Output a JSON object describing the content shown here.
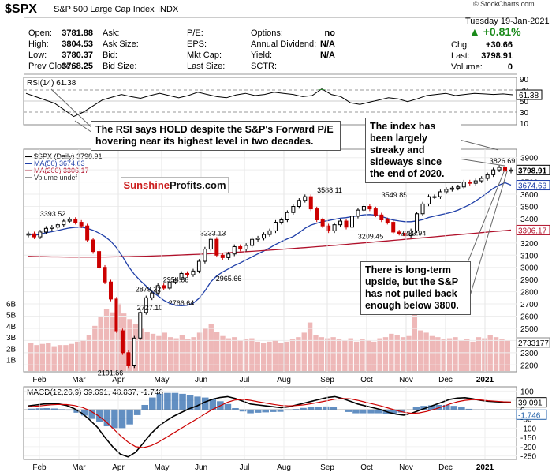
{
  "header": {
    "symbol": "$SPX",
    "name": "S&P 500 Large Cap Index",
    "exchange": "INDX",
    "date": "Tuesday 19-Jan-2021",
    "watermark": "© StockCharts.com",
    "quote_left": [
      {
        "label": "Open:",
        "value": "3781.88"
      },
      {
        "label": "High:",
        "value": "3804.53"
      },
      {
        "label": "Low:",
        "value": "3780.37"
      },
      {
        "label": "Prev Close:",
        "value": "3768.25"
      }
    ],
    "quote_mid": [
      {
        "label": "Ask:",
        "value": ""
      },
      {
        "label": "Ask Size:",
        "value": ""
      },
      {
        "label": "Bid:",
        "value": ""
      },
      {
        "label": "Bid Size:",
        "value": ""
      }
    ],
    "quote_mid2": [
      {
        "label": "P/E:",
        "value": ""
      },
      {
        "label": "EPS:",
        "value": ""
      },
      {
        "label": "Mkt Cap:",
        "value": ""
      },
      {
        "label": "Last Size:",
        "value": ""
      }
    ],
    "quote_right": [
      {
        "label": "Options:",
        "value": "no"
      },
      {
        "label": "Annual Dividend:",
        "value": "N/A"
      },
      {
        "label": "Yield:",
        "value": "N/A"
      },
      {
        "label": "SCTR:",
        "value": ""
      }
    ],
    "change_pct": "▲ +0.81%",
    "chg_label": "Chg:",
    "chg_value": "+30.66",
    "last_label": "Last:",
    "last_value": "3798.91",
    "vol_label": "Volume:",
    "vol_value": "0"
  },
  "callouts": {
    "rsi": "The RSI says HOLD despite the S&P's Forward P/E hovering near its highest level in two decades.",
    "streaky": "The index has been largely streaky and sideways since the end of 2020.",
    "upside": "There is long-term upside, but the S&P has not pulled back enough below 3800."
  },
  "logo": {
    "part1": "Sunshine",
    "part2": "Profits.com"
  },
  "colors": {
    "up": "#000000",
    "down": "#cc0000",
    "ma50": "#1f3fa8",
    "ma200": "#b0102a",
    "volume": "#e8a0a0",
    "rsi_fill": "#2e7d32",
    "macd_line": "#000000",
    "signal": "#cc0000",
    "hist": "#1f5fa8"
  },
  "chart_data": [
    {
      "type": "line",
      "panel": "RSI",
      "title": "RSI(14) 61.38",
      "ylim": [
        10,
        90
      ],
      "y_ticks": [
        10,
        30,
        50,
        70,
        90
      ],
      "reference_lines": [
        30,
        70
      ],
      "last_value_label": "61.38",
      "series": [
        {
          "name": "RSI(14)",
          "values": [
            64,
            58,
            52,
            46,
            34,
            22,
            30,
            41,
            52,
            57,
            62,
            58,
            55,
            60,
            64,
            60,
            56,
            60,
            66,
            62,
            58,
            56,
            61,
            64,
            60,
            62,
            66,
            64,
            62,
            58,
            60,
            72,
            62,
            58,
            47,
            44,
            48,
            52,
            56,
            54,
            49,
            54,
            60,
            62,
            64,
            60,
            62,
            64,
            63,
            62,
            63,
            61.38
          ]
        }
      ]
    },
    {
      "type": "candlestick",
      "panel": "Price",
      "title": "$SPX (Daily) 3798.91",
      "legend": [
        {
          "label": "$SPX (Daily) 3798.91",
          "color": "#000000"
        },
        {
          "label": "MA(50) 3674.63",
          "color": "#1f3fa8"
        },
        {
          "label": "MA(200) 3306.17",
          "color": "#b0102a"
        },
        {
          "label": "Volume undef",
          "color": "#999999"
        }
      ],
      "ylim": [
        2150,
        3950
      ],
      "y_ticks": [
        2200,
        2300,
        2400,
        2500,
        2600,
        2700,
        2800,
        2900,
        3000,
        3100,
        3200,
        3300,
        3400,
        3500,
        3600,
        3700,
        3800,
        3900
      ],
      "x_ticks": [
        "Feb",
        "Mar",
        "Apr",
        "May",
        "Jun",
        "Jul",
        "Aug",
        "Sep",
        "Oct",
        "Nov",
        "Dec",
        "2021"
      ],
      "close": [
        3275,
        3250,
        3290,
        3320,
        3330,
        3350,
        3380,
        3393,
        3370,
        3340,
        3225,
        3130,
        3000,
        2880,
        2740,
        2480,
        2300,
        2192,
        2420,
        2630,
        2750,
        2790,
        2850,
        2830,
        2880,
        2900,
        2950,
        2940,
        2970,
        3050,
        3150,
        3230,
        3100,
        3080,
        3110,
        3170,
        3150,
        3180,
        3230,
        3240,
        3270,
        3300,
        3370,
        3390,
        3450,
        3500,
        3550,
        3580,
        3480,
        3390,
        3340,
        3300,
        3350,
        3380,
        3330,
        3420,
        3470,
        3500,
        3480,
        3430,
        3390,
        3370,
        3290,
        3280,
        3260,
        3300,
        3440,
        3520,
        3580,
        3580,
        3620,
        3640,
        3650,
        3660,
        3700,
        3690,
        3710,
        3730,
        3760,
        3800,
        3820,
        3790,
        3798.91
      ],
      "ma50_last": 3674.63,
      "ma200_last": 3306.17,
      "annotations": [
        {
          "text": "3393.52",
          "value": 3393.52
        },
        {
          "text": "2191.86",
          "value": 2191.86
        },
        {
          "text": "2727.10",
          "value": 2727.1
        },
        {
          "text": "2879.22",
          "value": 2879.22
        },
        {
          "text": "2954.86",
          "value": 2954.86
        },
        {
          "text": "2766.64",
          "value": 2766.64
        },
        {
          "text": "3233.13",
          "value": 3233.13
        },
        {
          "text": "2965.66",
          "value": 2965.66
        },
        {
          "text": "3588.11",
          "value": 3588.11
        },
        {
          "text": "3209.45",
          "value": 3209.45
        },
        {
          "text": "3549.85",
          "value": 3549.85
        },
        {
          "text": "3233.94",
          "value": 3233.94
        },
        {
          "text": "3826.69",
          "value": 3826.69
        }
      ],
      "last_labels": [
        "3798.91",
        "3674.63",
        "3306.17",
        "2733177"
      ],
      "volume_ticks": [
        "1B",
        "2B",
        "3B",
        "4B",
        "5B",
        "6B"
      ],
      "volume": [
        2.5,
        2.3,
        2.4,
        2.5,
        2.2,
        2.3,
        2.3,
        2.4,
        2.6,
        2.7,
        3.2,
        4.0,
        4.8,
        5.5,
        5.2,
        6.0,
        5.1,
        4.6,
        4.2,
        3.8,
        3.5,
        3.3,
        3.1,
        3.4,
        3.0,
        2.9,
        3.2,
        2.8,
        3.0,
        3.4,
        3.8,
        4.2,
        3.5,
        3.1,
        2.9,
        3.0,
        2.7,
        2.8,
        2.9,
        2.6,
        2.5,
        2.6,
        2.7,
        2.5,
        2.6,
        2.8,
        3.0,
        3.4,
        4.3,
        3.2,
        3.0,
        2.9,
        3.0,
        2.8,
        2.7,
        2.9,
        2.6,
        2.8,
        2.7,
        2.6,
        2.9,
        3.0,
        3.3,
        3.2,
        3.0,
        3.1,
        5.2,
        3.6,
        3.4,
        3.1,
        3.0,
        2.8,
        2.9,
        3.0,
        2.7,
        2.8,
        2.6,
        3.0,
        2.9,
        3.2,
        3.0,
        2.8,
        2.7
      ]
    },
    {
      "type": "line",
      "panel": "MACD",
      "title": "MACD(12,26,9) 39.091, 40.837, -1.746",
      "ylim": [
        -260,
        110
      ],
      "y_ticks": [
        -250,
        -200,
        -150,
        -100,
        -50,
        0,
        50,
        100
      ],
      "x_ticks": [
        "Feb",
        "Mar",
        "Apr",
        "May",
        "Jun",
        "Jul",
        "Aug",
        "Sep",
        "Oct",
        "Nov",
        "Dec",
        "2021"
      ],
      "last_labels": [
        "39.091",
        "-1.746"
      ],
      "series": [
        {
          "name": "MACD",
          "values": [
            20,
            25,
            30,
            32,
            30,
            22,
            5,
            -20,
            -55,
            -95,
            -150,
            -200,
            -240,
            -255,
            -230,
            -180,
            -130,
            -90,
            -60,
            -35,
            -15,
            5,
            20,
            40,
            55,
            65,
            70,
            60,
            45,
            30,
            25,
            20,
            15,
            10,
            15,
            25,
            35,
            45,
            55,
            65,
            70,
            60,
            45,
            30,
            20,
            10,
            0,
            -15,
            -25,
            -30,
            -20,
            -5,
            10,
            25,
            40,
            55,
            62,
            64,
            58,
            50,
            45,
            42,
            40,
            39.091
          ]
        },
        {
          "name": "Signal",
          "values": [
            15,
            18,
            22,
            26,
            28,
            27,
            22,
            12,
            -5,
            -30,
            -60,
            -100,
            -140,
            -175,
            -200,
            -205,
            -195,
            -175,
            -150,
            -125,
            -100,
            -75,
            -50,
            -25,
            0,
            20,
            40,
            52,
            55,
            50,
            42,
            35,
            28,
            22,
            20,
            22,
            26,
            32,
            40,
            48,
            56,
            60,
            58,
            50,
            40,
            30,
            20,
            8,
            -4,
            -14,
            -20,
            -18,
            -10,
            2,
            15,
            30,
            42,
            50,
            54,
            52,
            48,
            45,
            42,
            40.837
          ]
        }
      ],
      "histogram": [
        5,
        7,
        8,
        6,
        2,
        -5,
        -17,
        -32,
        -50,
        -65,
        -90,
        -100,
        -100,
        -80,
        -30,
        25,
        65,
        85,
        90,
        90,
        85,
        80,
        70,
        65,
        55,
        45,
        30,
        8,
        -10,
        -20,
        -17,
        -15,
        -13,
        -12,
        -5,
        3,
        9,
        13,
        15,
        17,
        14,
        0,
        -13,
        -20,
        -20,
        -20,
        -20,
        -23,
        -21,
        -16,
        0,
        13,
        20,
        23,
        25,
        25,
        20,
        14,
        4,
        -2,
        -3,
        -3,
        -2,
        -1.746
      ]
    }
  ]
}
